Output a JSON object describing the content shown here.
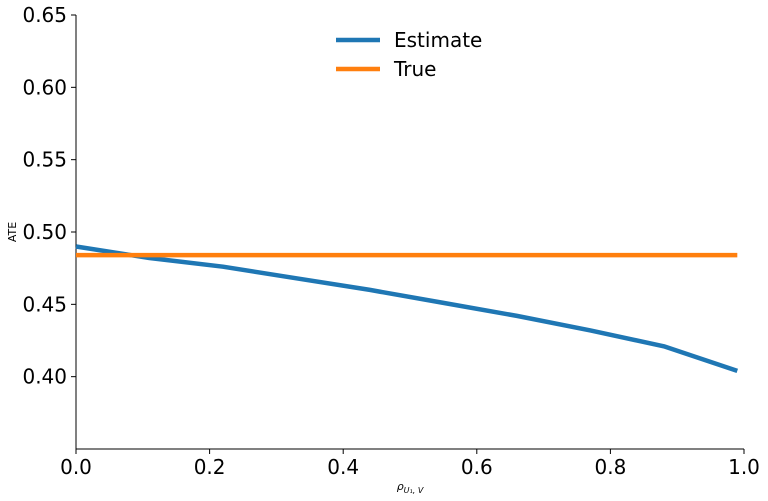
{
  "chart_data": {
    "type": "line",
    "title": "",
    "xlabel": "ρ",
    "xlabel_sub": "U₁, V",
    "ylabel": "ATE",
    "xlim": [
      0.0,
      1.0
    ],
    "ylim": [
      0.35,
      0.65
    ],
    "xticks": [
      0.0,
      0.2,
      0.4,
      0.6,
      0.8,
      1.0
    ],
    "xtick_labels": [
      "0.0",
      "0.2",
      "0.4",
      "0.6",
      "0.8",
      "1.0"
    ],
    "yticks": [
      0.4,
      0.45,
      0.5,
      0.55,
      0.6,
      0.65
    ],
    "ytick_labels": [
      "0.40",
      "0.45",
      "0.50",
      "0.55",
      "0.60",
      "0.65"
    ],
    "grid": false,
    "legend_position": "top-center",
    "series": [
      {
        "name": "Estimate",
        "color": "#1f77b4",
        "x": [
          0.0,
          0.11,
          0.22,
          0.33,
          0.44,
          0.55,
          0.66,
          0.77,
          0.88,
          0.99
        ],
        "y": [
          0.49,
          0.482,
          0.476,
          0.468,
          0.46,
          0.451,
          0.442,
          0.432,
          0.421,
          0.404
        ]
      },
      {
        "name": "True",
        "color": "#ff7f0e",
        "x": [
          0.0,
          0.99
        ],
        "y": [
          0.484,
          0.484
        ]
      }
    ]
  }
}
